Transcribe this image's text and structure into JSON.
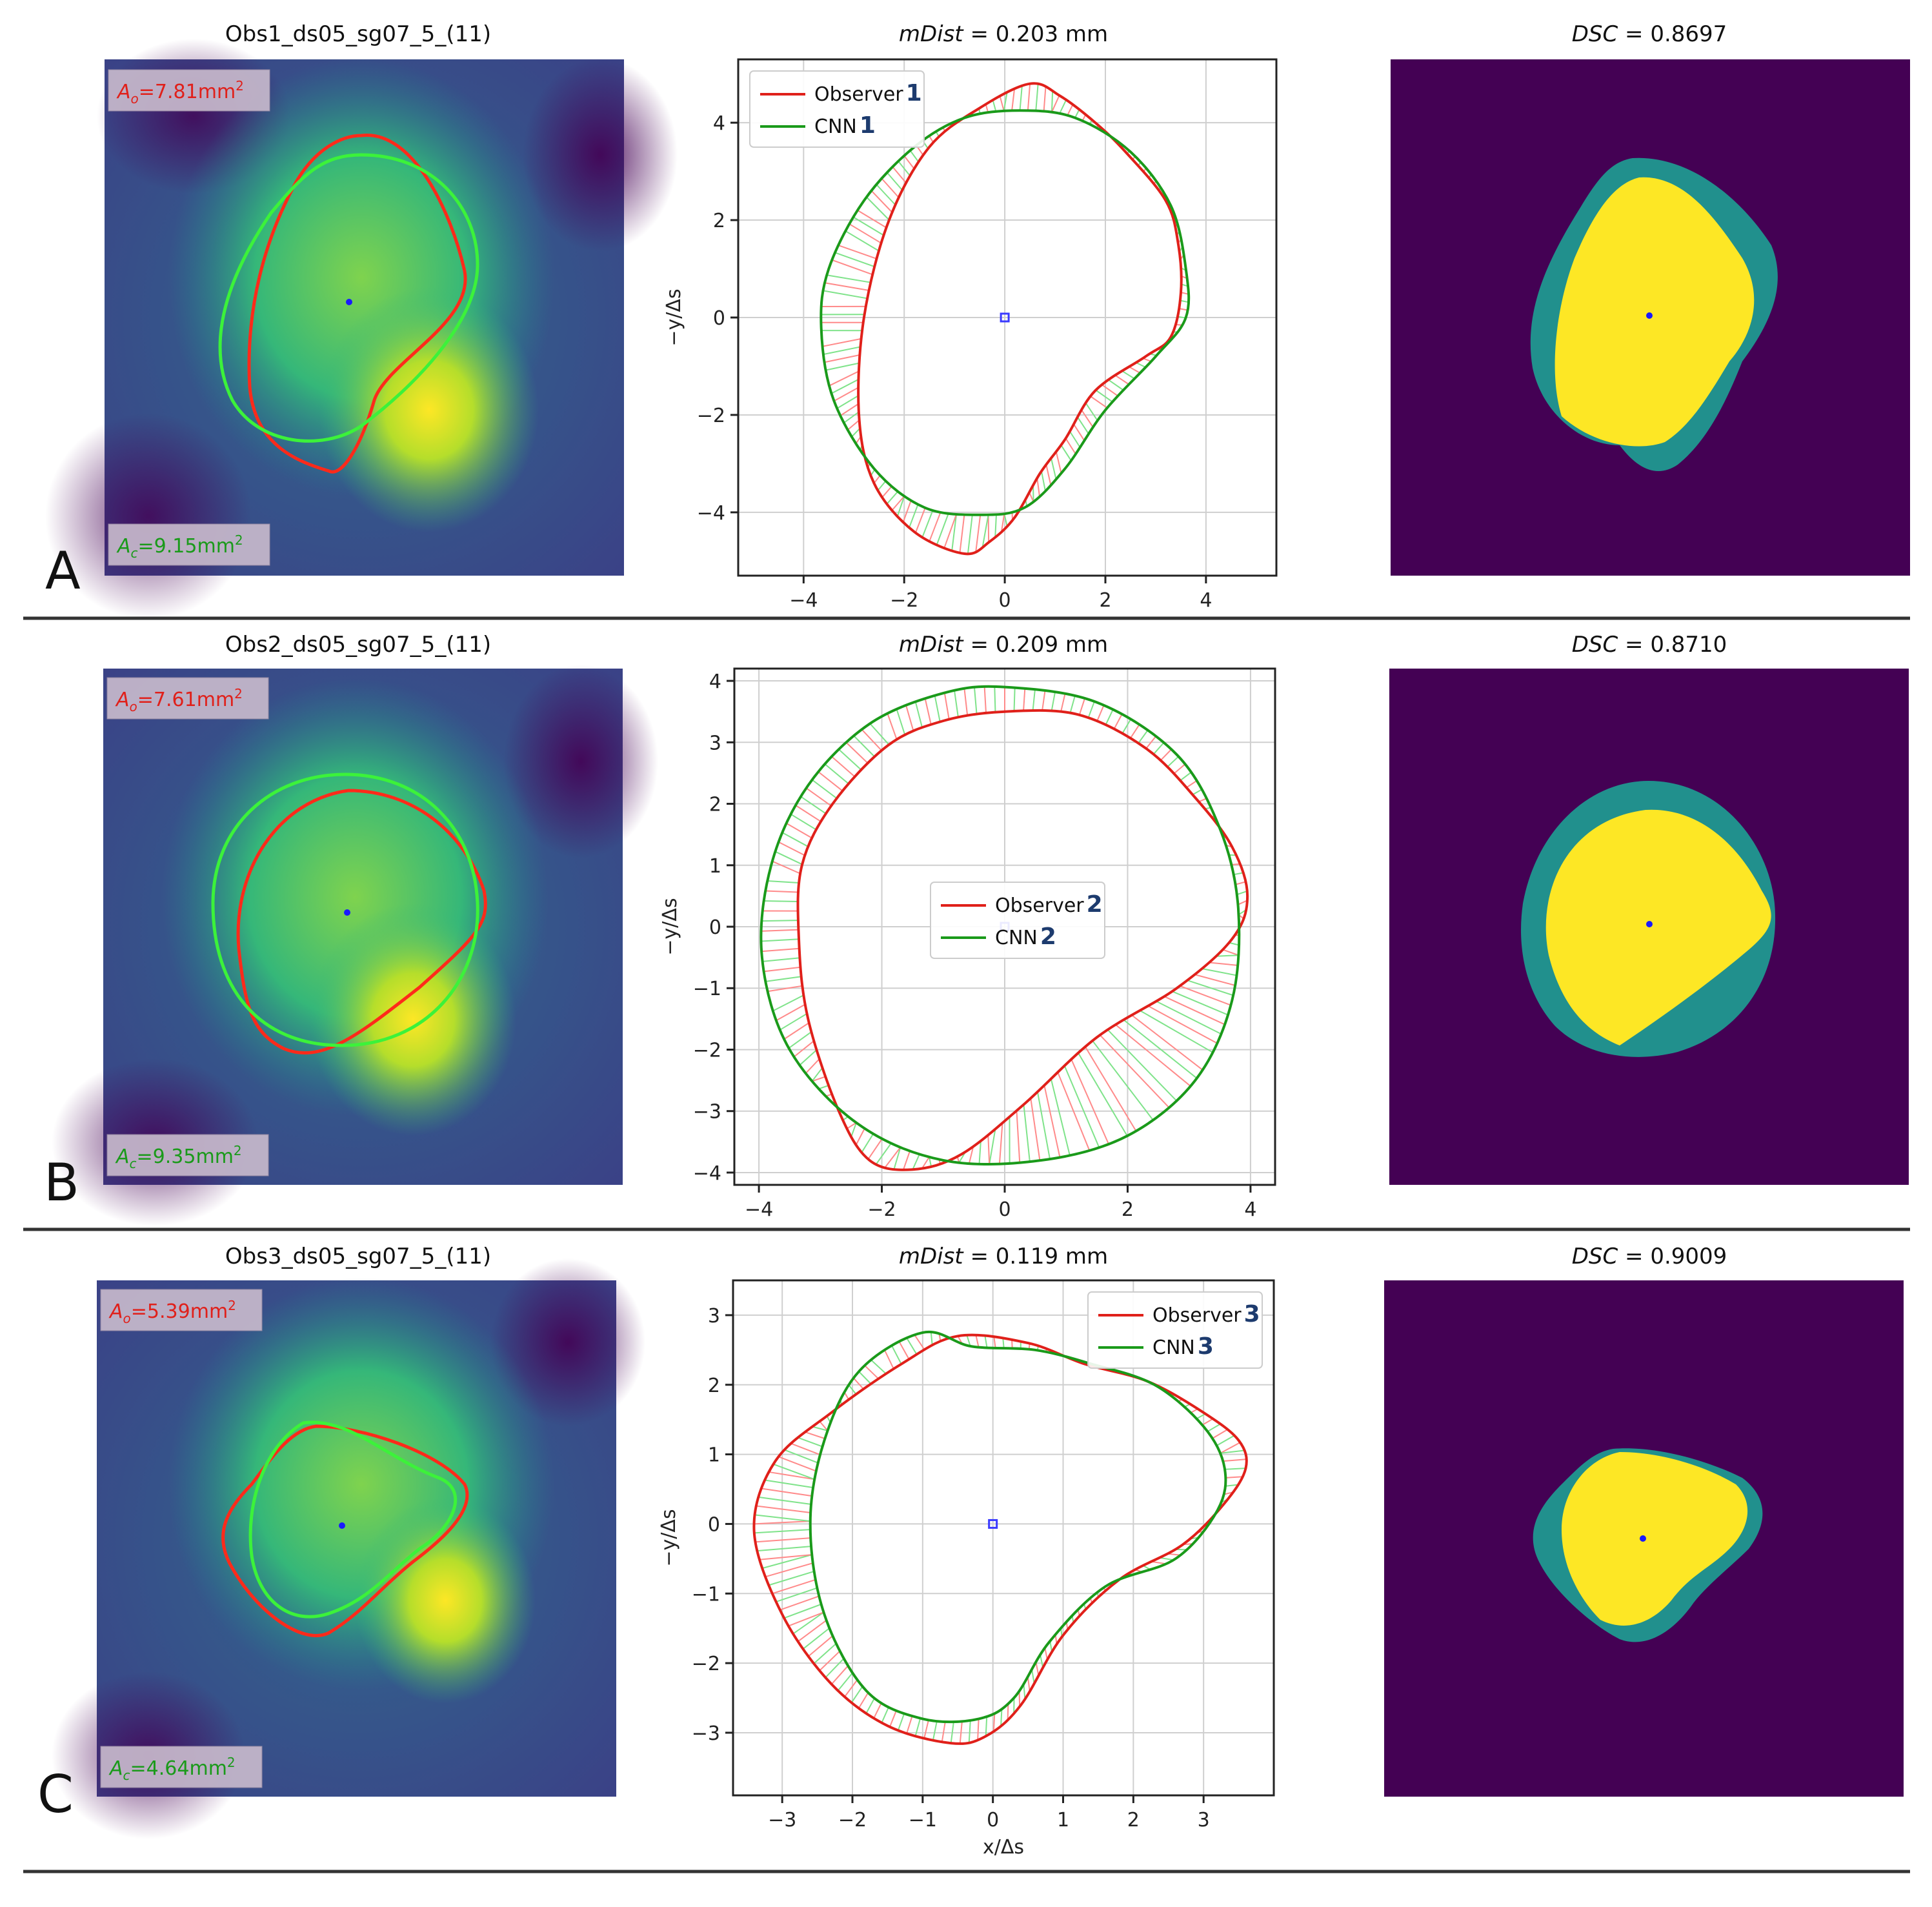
{
  "chart_data": [
    {
      "row": "A",
      "type": "image",
      "title": "Obs1_ds05_sg07_5_(11)",
      "obs_area": {
        "sym": "A",
        "sub": "o",
        "value": "7.81",
        "unit": "mm",
        "sup": "2"
      },
      "cnn_area": {
        "sym": "A",
        "sub": "c",
        "value": "9.15",
        "unit": "mm",
        "sup": "2"
      },
      "colors": {
        "observer": "#ff2a1a",
        "cnn": "#3cf23a",
        "center": "#1a1aff"
      }
    },
    {
      "row": "A",
      "type": "line",
      "title": {
        "metric": "mDist",
        "rest": " = 0.203 mm"
      },
      "xlim": [
        -5.3,
        5.4
      ],
      "ylim": [
        -5.3,
        5.3
      ],
      "xticks": [
        -4,
        -2,
        0,
        2,
        4
      ],
      "yticks": [
        -4,
        -2,
        0,
        2,
        4
      ],
      "xlabel": "",
      "ylabel": "−y/Δs",
      "grid": true,
      "legend_position": "upper-left",
      "series": [
        {
          "name": "Observer",
          "tag": "1",
          "color": "#e0201a",
          "points": [
            [
              0.5,
              4.8
            ],
            [
              1.1,
              4.55
            ],
            [
              1.8,
              4.0
            ],
            [
              2.4,
              3.4
            ],
            [
              3.2,
              2.4
            ],
            [
              3.45,
              1.5
            ],
            [
              3.5,
              0.5
            ],
            [
              3.3,
              -0.4
            ],
            [
              2.8,
              -0.8
            ],
            [
              1.8,
              -1.5
            ],
            [
              1.2,
              -2.5
            ],
            [
              0.7,
              -3.2
            ],
            [
              0.2,
              -4.1
            ],
            [
              -0.3,
              -4.6
            ],
            [
              -0.8,
              -4.85
            ],
            [
              -1.8,
              -4.4
            ],
            [
              -2.6,
              -3.4
            ],
            [
              -2.9,
              -2.0
            ],
            [
              -2.8,
              0
            ],
            [
              -2.3,
              2.0
            ],
            [
              -1.5,
              3.5
            ],
            [
              -0.5,
              4.3
            ]
          ]
        },
        {
          "name": "CNN",
          "tag": "1",
          "color": "#1a9a1a",
          "points": [
            [
              0.3,
              4.25
            ],
            [
              1.4,
              4.1
            ],
            [
              2.5,
              3.4
            ],
            [
              3.3,
              2.3
            ],
            [
              3.6,
              1.0
            ],
            [
              3.6,
              0
            ],
            [
              3.0,
              -0.8
            ],
            [
              2.0,
              -1.9
            ],
            [
              1.2,
              -3.1
            ],
            [
              0.4,
              -3.9
            ],
            [
              -0.5,
              -4.05
            ],
            [
              -1.6,
              -3.9
            ],
            [
              -2.6,
              -3.1
            ],
            [
              -3.4,
              -1.7
            ],
            [
              -3.65,
              -0.2
            ],
            [
              -3.5,
              1.0
            ],
            [
              -2.8,
              2.4
            ],
            [
              -1.8,
              3.5
            ],
            [
              -0.8,
              4.1
            ]
          ]
        }
      ]
    },
    {
      "row": "A",
      "type": "heatmap",
      "title": {
        "metric": "DSC",
        "rest": " = 0.8697"
      },
      "colors": {
        "background": "#440154",
        "overlap": "#fde725",
        "difference": "#21908d"
      }
    },
    {
      "row": "B",
      "type": "image",
      "title": "Obs2_ds05_sg07_5_(11)",
      "obs_area": {
        "sym": "A",
        "sub": "o",
        "value": "7.61",
        "unit": "mm",
        "sup": "2"
      },
      "cnn_area": {
        "sym": "A",
        "sub": "c",
        "value": "9.35",
        "unit": "mm",
        "sup": "2"
      },
      "colors": {
        "observer": "#ff2a1a",
        "cnn": "#3cf23a",
        "center": "#1a1aff"
      }
    },
    {
      "row": "B",
      "type": "line",
      "title": {
        "metric": "mDist",
        "rest": " = 0.209 mm"
      },
      "xlim": [
        -4.4,
        4.4
      ],
      "ylim": [
        -4.2,
        4.2
      ],
      "xticks": [
        -4,
        -2,
        0,
        2,
        4
      ],
      "yticks": [
        -4,
        -3,
        -2,
        -1,
        0,
        1,
        2,
        3,
        4
      ],
      "xlabel": "",
      "ylabel": "−y/Δs",
      "grid": true,
      "legend_position": "center",
      "series": [
        {
          "name": "Observer",
          "tag": "2",
          "color": "#e0201a",
          "points": [
            [
              0.0,
              3.5
            ],
            [
              1.2,
              3.45
            ],
            [
              2.3,
              2.9
            ],
            [
              3.1,
              2.1
            ],
            [
              3.7,
              1.3
            ],
            [
              3.95,
              0.5
            ],
            [
              3.7,
              -0.2
            ],
            [
              2.8,
              -1.0
            ],
            [
              1.5,
              -1.8
            ],
            [
              0.3,
              -2.9
            ],
            [
              -0.7,
              -3.7
            ],
            [
              -1.5,
              -3.95
            ],
            [
              -2.2,
              -3.8
            ],
            [
              -2.7,
              -3.0
            ],
            [
              -3.2,
              -1.5
            ],
            [
              -3.35,
              -0.2
            ],
            [
              -3.3,
              1.0
            ],
            [
              -2.8,
              2.0
            ],
            [
              -1.9,
              2.95
            ],
            [
              -1.0,
              3.35
            ]
          ]
        },
        {
          "name": "CNN",
          "tag": "2",
          "color": "#1a9a1a",
          "points": [
            [
              0.0,
              3.9
            ],
            [
              1.5,
              3.65
            ],
            [
              2.8,
              2.8
            ],
            [
              3.5,
              1.6
            ],
            [
              3.8,
              0.3
            ],
            [
              3.7,
              -1.2
            ],
            [
              3.1,
              -2.5
            ],
            [
              2.0,
              -3.4
            ],
            [
              0.6,
              -3.8
            ],
            [
              -1.0,
              -3.8
            ],
            [
              -2.4,
              -3.2
            ],
            [
              -3.5,
              -2.0
            ],
            [
              -3.95,
              -0.5
            ],
            [
              -3.8,
              1.0
            ],
            [
              -3.2,
              2.3
            ],
            [
              -2.2,
              3.3
            ],
            [
              -1.0,
              3.8
            ]
          ]
        }
      ]
    },
    {
      "row": "B",
      "type": "heatmap",
      "title": {
        "metric": "DSC",
        "rest": " = 0.8710"
      },
      "colors": {
        "background": "#440154",
        "overlap": "#fde725",
        "difference": "#21908d"
      }
    },
    {
      "row": "C",
      "type": "image",
      "title": "Obs3_ds05_sg07_5_(11)",
      "obs_area": {
        "sym": "A",
        "sub": "o",
        "value": "5.39",
        "unit": "mm",
        "sup": "2"
      },
      "cnn_area": {
        "sym": "A",
        "sub": "c",
        "value": "4.64",
        "unit": "mm",
        "sup": "2"
      },
      "colors": {
        "observer": "#ff2a1a",
        "cnn": "#3cf23a",
        "center": "#1a1aff"
      }
    },
    {
      "row": "C",
      "type": "line",
      "title": {
        "metric": "mDist",
        "rest": " = 0.119 mm"
      },
      "xlim": [
        -3.7,
        4.0
      ],
      "ylim": [
        -3.9,
        3.5
      ],
      "xticks": [
        -3,
        -2,
        -1,
        0,
        1,
        2,
        3
      ],
      "yticks": [
        -3,
        -2,
        -1,
        0,
        1,
        2,
        3
      ],
      "xlabel": "x/Δs",
      "ylabel": "−y/Δs",
      "grid": true,
      "legend_position": "upper-right",
      "series": [
        {
          "name": "Observer",
          "tag": "3",
          "color": "#e0201a",
          "points": [
            [
              -0.5,
              2.7
            ],
            [
              0.5,
              2.6
            ],
            [
              1.3,
              2.3
            ],
            [
              2.2,
              2.05
            ],
            [
              3.0,
              1.6
            ],
            [
              3.5,
              1.2
            ],
            [
              3.6,
              0.8
            ],
            [
              3.3,
              0.3
            ],
            [
              2.7,
              -0.3
            ],
            [
              1.8,
              -0.8
            ],
            [
              1.0,
              -1.6
            ],
            [
              0.4,
              -2.6
            ],
            [
              -0.1,
              -3.05
            ],
            [
              -0.6,
              -3.15
            ],
            [
              -1.5,
              -2.9
            ],
            [
              -2.3,
              -2.3
            ],
            [
              -3.0,
              -1.3
            ],
            [
              -3.4,
              -0.1
            ],
            [
              -3.1,
              0.9
            ],
            [
              -2.3,
              1.6
            ],
            [
              -1.3,
              2.3
            ]
          ]
        },
        {
          "name": "CNN",
          "tag": "3",
          "color": "#1a9a1a",
          "points": [
            [
              -1.0,
              2.75
            ],
            [
              -0.3,
              2.55
            ],
            [
              0.6,
              2.5
            ],
            [
              1.4,
              2.3
            ],
            [
              2.3,
              2.0
            ],
            [
              3.0,
              1.4
            ],
            [
              3.3,
              0.8
            ],
            [
              3.2,
              0.2
            ],
            [
              2.6,
              -0.5
            ],
            [
              1.6,
              -0.9
            ],
            [
              0.8,
              -1.7
            ],
            [
              0.3,
              -2.5
            ],
            [
              -0.2,
              -2.8
            ],
            [
              -1.0,
              -2.8
            ],
            [
              -1.8,
              -2.4
            ],
            [
              -2.4,
              -1.3
            ],
            [
              -2.6,
              0.0
            ],
            [
              -2.4,
              1.2
            ],
            [
              -1.9,
              2.2
            ]
          ]
        }
      ]
    },
    {
      "row": "C",
      "type": "heatmap",
      "title": {
        "metric": "DSC",
        "rest": " = 0.9009"
      },
      "colors": {
        "background": "#440154",
        "overlap": "#fde725",
        "difference": "#21908d"
      }
    }
  ],
  "row_labels": [
    "A",
    "B",
    "C"
  ]
}
